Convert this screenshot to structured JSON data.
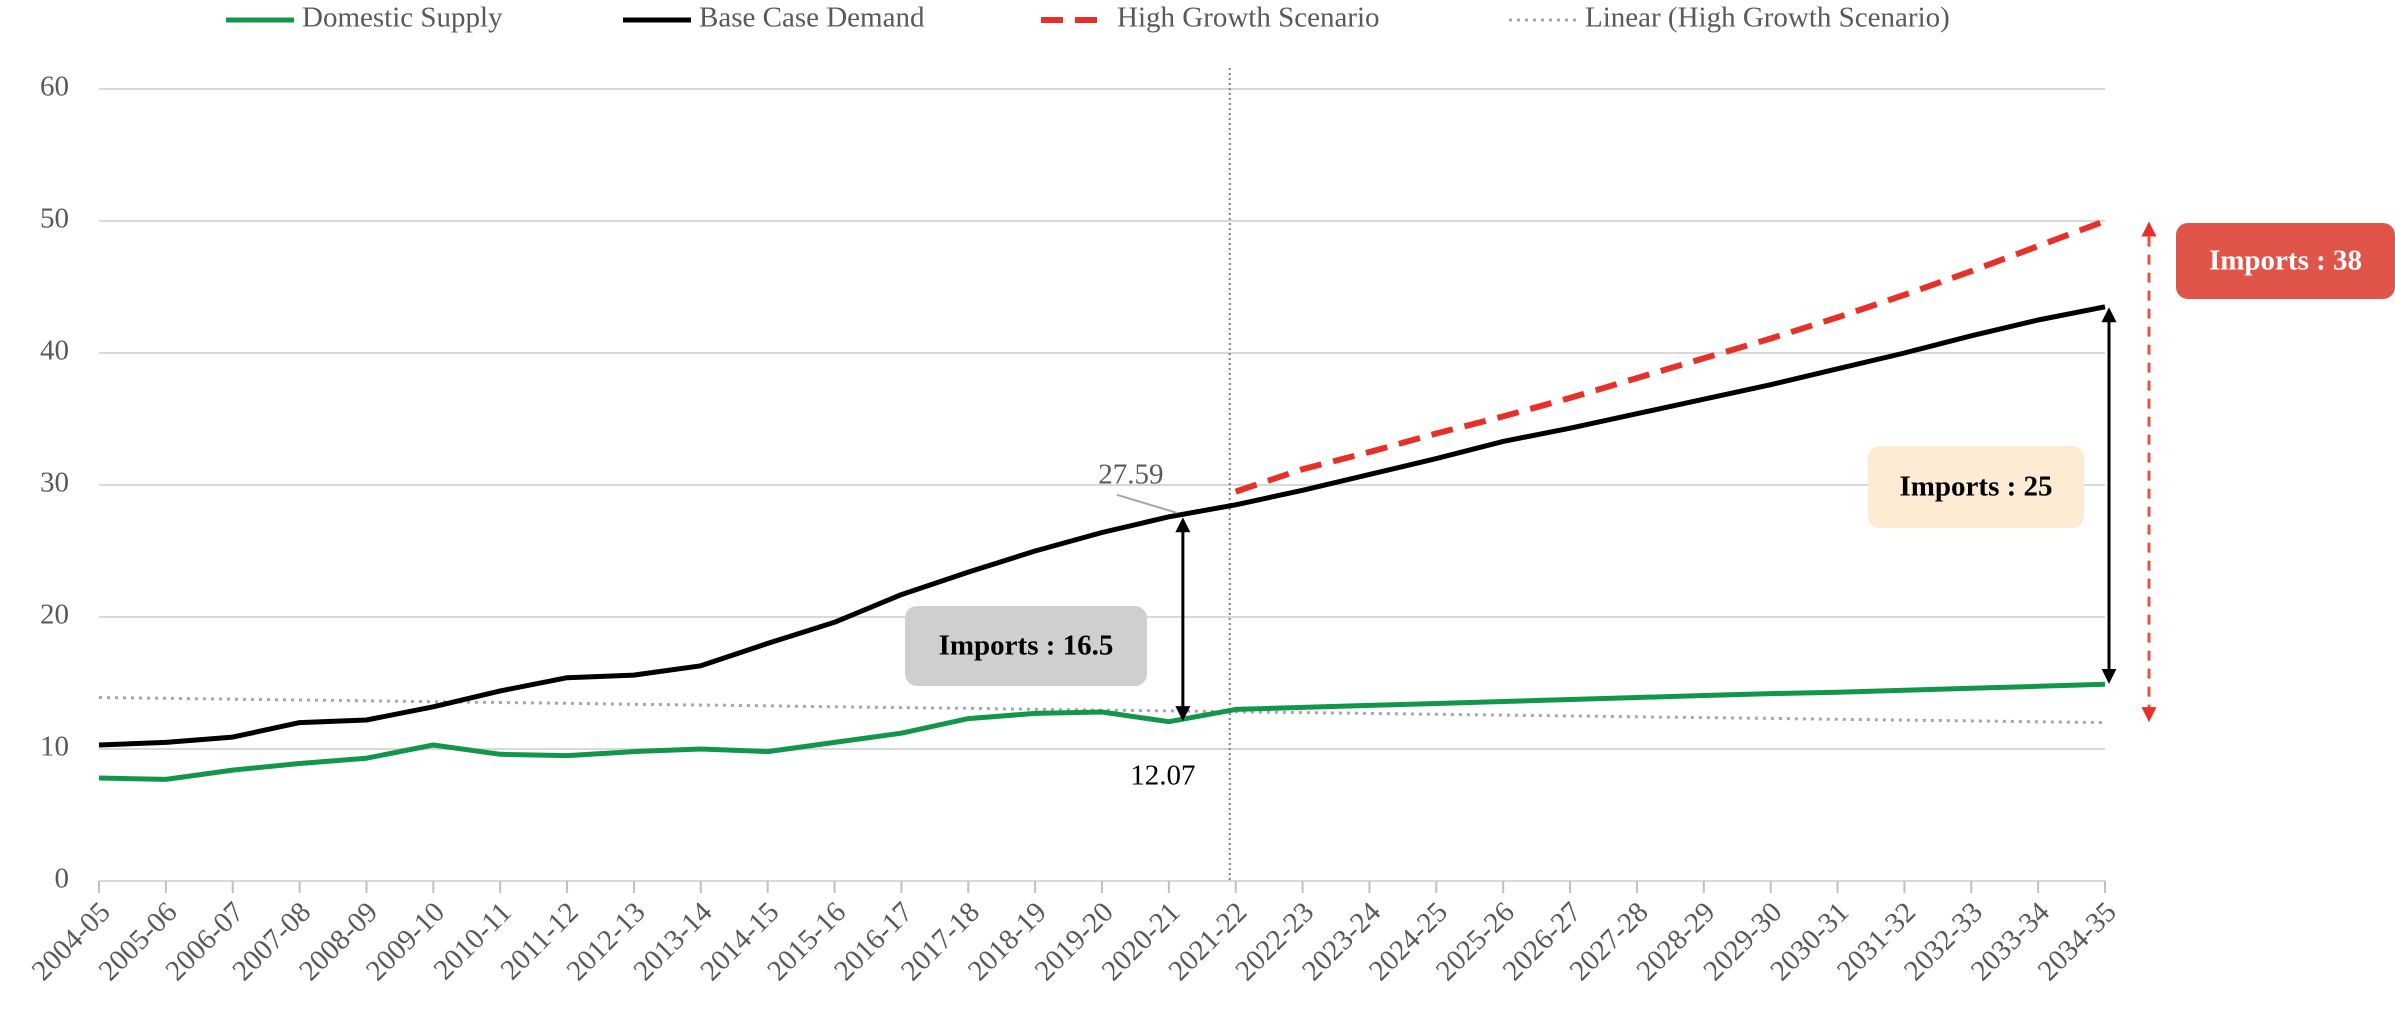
{
  "chart_data": {
    "type": "line",
    "categories": [
      "2004-05",
      "2005-06",
      "2006-07",
      "2007-08",
      "2008-09",
      "2009-10",
      "2010-11",
      "2011-12",
      "2012-13",
      "2013-14",
      "2014-15",
      "2015-16",
      "2016-17",
      "2017-18",
      "2018-19",
      "2019-20",
      "2020-21",
      "2021-22",
      "2022-23",
      "2023-24",
      "2024-25",
      "2025-26",
      "2026-27",
      "2027-28",
      "2028-29",
      "2029-30",
      "2030-31",
      "2031-32",
      "2032-33",
      "2033-34",
      "2034-35"
    ],
    "series": [
      {
        "name": "Domestic Supply",
        "color": "#12964a",
        "style": "solid",
        "values": [
          7.8,
          7.7,
          8.4,
          8.9,
          9.3,
          10.3,
          9.6,
          9.5,
          9.8,
          10.0,
          9.8,
          10.5,
          11.2,
          12.3,
          12.7,
          12.8,
          12.07,
          13.0,
          13.15,
          13.3,
          13.45,
          13.6,
          13.75,
          13.9,
          14.05,
          14.2,
          14.3,
          14.45,
          14.6,
          14.75,
          14.9
        ]
      },
      {
        "name": "Base Case Demand",
        "color": "#000000",
        "style": "solid",
        "values": [
          10.3,
          10.5,
          10.9,
          12.0,
          12.2,
          13.2,
          14.4,
          15.4,
          15.6,
          16.3,
          18.0,
          19.6,
          21.7,
          23.4,
          25.0,
          26.4,
          27.59,
          28.5,
          29.6,
          30.8,
          32.0,
          33.3,
          34.3,
          35.4,
          36.5,
          37.6,
          38.8,
          40.0,
          41.3,
          42.5,
          43.5
        ]
      },
      {
        "name": "High Growth Scenario",
        "color": "#e8302a",
        "style": "dashed",
        "values": [
          null,
          null,
          null,
          null,
          null,
          null,
          null,
          null,
          null,
          null,
          null,
          null,
          null,
          null,
          null,
          null,
          null,
          29.5,
          31.2,
          32.5,
          33.9,
          35.2,
          36.6,
          38.1,
          39.6,
          41.1,
          42.7,
          44.4,
          46.2,
          48.1,
          50.0
        ]
      },
      {
        "name": "Linear (High Growth Scenario)",
        "color": "#a6a6a6",
        "style": "dotted",
        "values": [
          13.9,
          13.84,
          13.77,
          13.71,
          13.65,
          13.58,
          13.52,
          13.46,
          13.39,
          13.33,
          13.27,
          13.2,
          13.14,
          13.08,
          13.01,
          12.95,
          12.89,
          12.82,
          12.76,
          12.7,
          12.63,
          12.57,
          12.51,
          12.44,
          12.38,
          12.32,
          12.25,
          12.19,
          12.13,
          12.06,
          12.0
        ]
      }
    ],
    "ylim": [
      0,
      60
    ],
    "yticks": [
      0,
      10,
      20,
      30,
      40,
      50,
      60
    ],
    "grid": true,
    "legend": "top",
    "annotations": [
      "27.59",
      "12.07",
      "Imports :  16.5",
      "Imports :  25",
      "Imports :  38"
    ]
  }
}
